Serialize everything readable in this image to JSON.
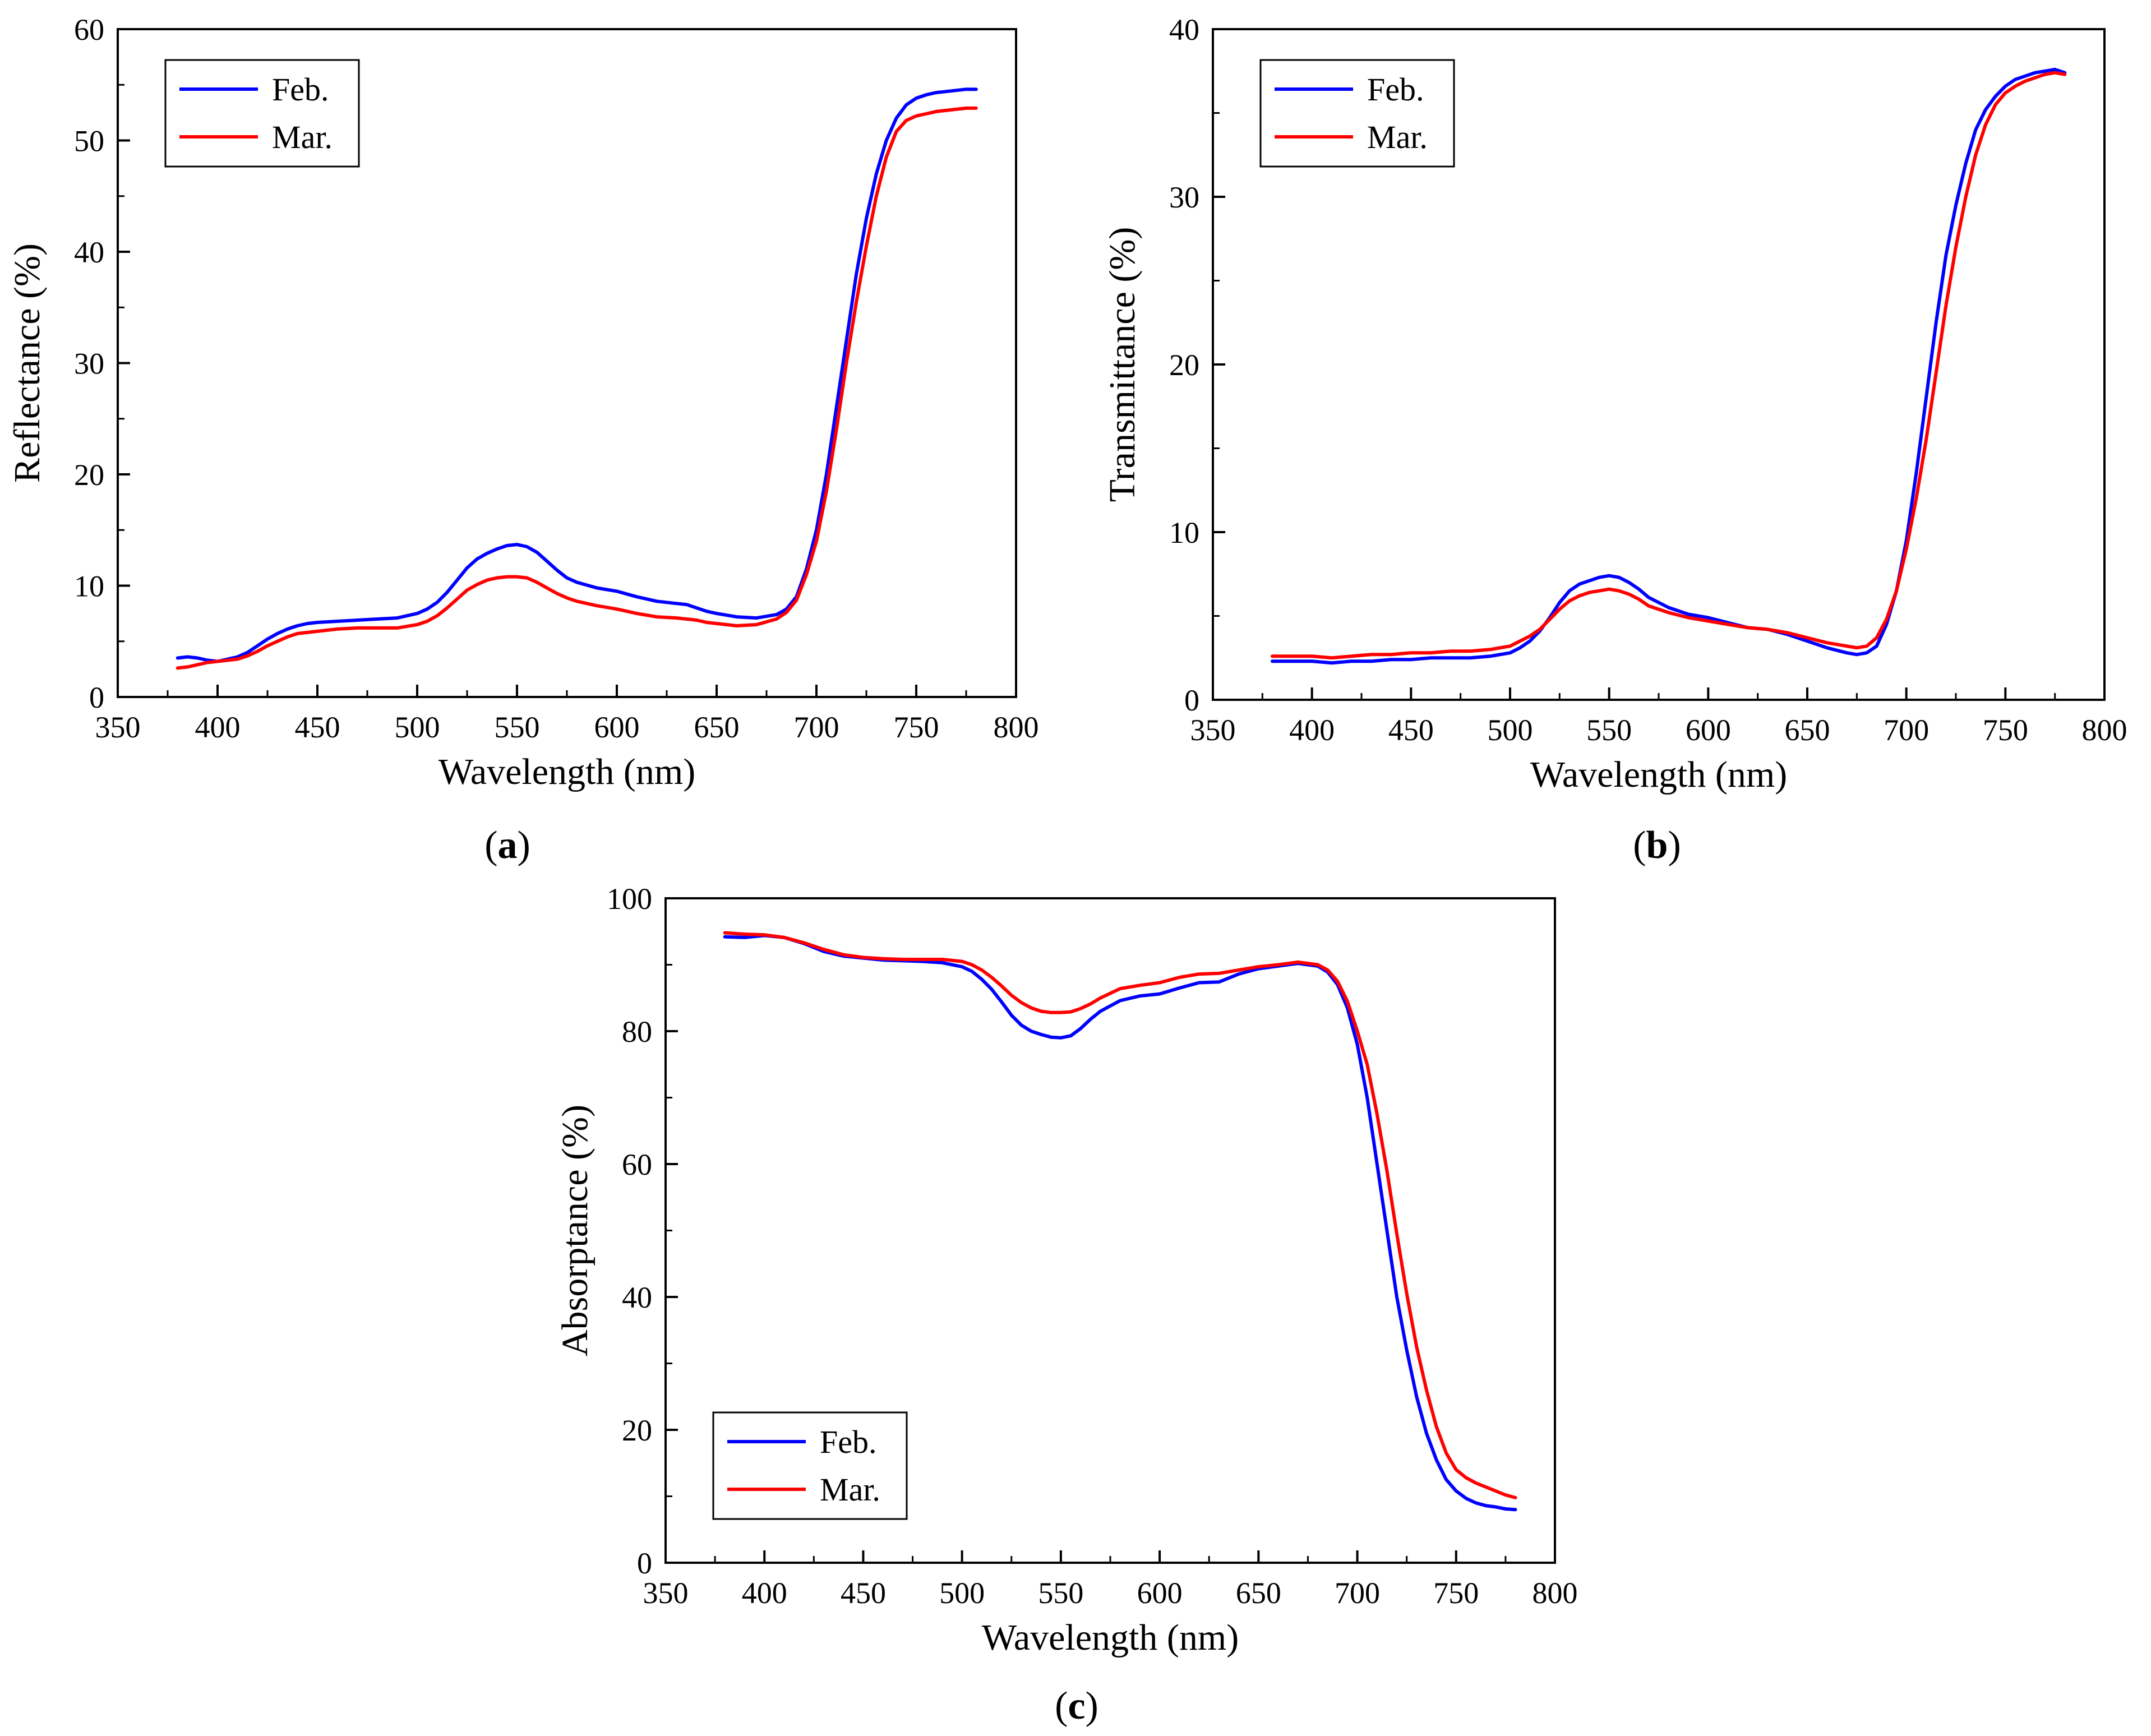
{
  "chart_data": [
    {
      "id": "a",
      "type": "line",
      "panel_label": "a",
      "xlabel": "Wavelength (nm)",
      "ylabel": "Reflectance (%)",
      "xlim": [
        350,
        800
      ],
      "ylim": [
        0,
        60
      ],
      "xticks": [
        350,
        400,
        450,
        500,
        550,
        600,
        650,
        700,
        750,
        800
      ],
      "yticks": [
        0,
        10,
        20,
        30,
        40,
        50,
        60
      ],
      "legend_position": "top-left",
      "series": [
        {
          "name": "Feb.",
          "color": "#0000ff",
          "x": [
            380,
            385,
            390,
            395,
            400,
            405,
            410,
            415,
            420,
            425,
            430,
            435,
            440,
            445,
            450,
            460,
            470,
            480,
            490,
            500,
            505,
            510,
            515,
            520,
            525,
            530,
            535,
            540,
            545,
            550,
            555,
            560,
            565,
            570,
            575,
            580,
            590,
            600,
            610,
            620,
            630,
            635,
            640,
            645,
            650,
            660,
            670,
            680,
            685,
            690,
            695,
            700,
            705,
            710,
            715,
            720,
            725,
            730,
            735,
            740,
            745,
            750,
            755,
            760,
            765,
            770,
            775,
            780
          ],
          "y": [
            3.5,
            3.6,
            3.5,
            3.3,
            3.2,
            3.4,
            3.6,
            4.0,
            4.6,
            5.2,
            5.7,
            6.1,
            6.4,
            6.6,
            6.7,
            6.8,
            6.9,
            7.0,
            7.1,
            7.5,
            7.9,
            8.5,
            9.4,
            10.5,
            11.6,
            12.4,
            12.9,
            13.3,
            13.6,
            13.7,
            13.5,
            13.0,
            12.2,
            11.4,
            10.7,
            10.3,
            9.8,
            9.5,
            9.0,
            8.6,
            8.4,
            8.3,
            8.0,
            7.7,
            7.5,
            7.2,
            7.1,
            7.4,
            7.9,
            9.0,
            11.5,
            15.0,
            20.0,
            26.0,
            32.0,
            38.0,
            43.0,
            47.0,
            50.0,
            52.0,
            53.2,
            53.8,
            54.1,
            54.3,
            54.4,
            54.5,
            54.6,
            54.6
          ]
        },
        {
          "name": "Mar.",
          "color": "#ff0000",
          "x": [
            380,
            385,
            390,
            395,
            400,
            405,
            410,
            415,
            420,
            425,
            430,
            435,
            440,
            445,
            450,
            460,
            470,
            480,
            490,
            500,
            505,
            510,
            515,
            520,
            525,
            530,
            535,
            540,
            545,
            550,
            555,
            560,
            565,
            570,
            575,
            580,
            590,
            600,
            610,
            620,
            630,
            635,
            640,
            645,
            650,
            660,
            670,
            680,
            685,
            690,
            695,
            700,
            705,
            710,
            715,
            720,
            725,
            730,
            735,
            740,
            745,
            750,
            755,
            760,
            765,
            770,
            775,
            780
          ],
          "y": [
            2.6,
            2.7,
            2.9,
            3.1,
            3.2,
            3.3,
            3.4,
            3.7,
            4.1,
            4.6,
            5.0,
            5.4,
            5.7,
            5.8,
            5.9,
            6.1,
            6.2,
            6.2,
            6.2,
            6.5,
            6.8,
            7.3,
            8.0,
            8.8,
            9.6,
            10.1,
            10.5,
            10.7,
            10.8,
            10.8,
            10.7,
            10.3,
            9.8,
            9.3,
            8.9,
            8.6,
            8.2,
            7.9,
            7.5,
            7.2,
            7.1,
            7.0,
            6.9,
            6.7,
            6.6,
            6.4,
            6.5,
            7.0,
            7.6,
            8.7,
            11.0,
            14.0,
            18.5,
            24.0,
            30.0,
            35.5,
            40.5,
            45.0,
            48.5,
            50.8,
            51.8,
            52.2,
            52.4,
            52.6,
            52.7,
            52.8,
            52.9,
            52.9
          ]
        }
      ]
    },
    {
      "id": "b",
      "type": "line",
      "panel_label": "b",
      "xlabel": "Wavelength (nm)",
      "ylabel": "Transmittance (%)",
      "xlim": [
        350,
        800
      ],
      "ylim": [
        0,
        40
      ],
      "xticks": [
        350,
        400,
        450,
        500,
        550,
        600,
        650,
        700,
        750,
        800
      ],
      "yticks": [
        0,
        10,
        20,
        30,
        40
      ],
      "legend_position": "top-left",
      "series": [
        {
          "name": "Feb.",
          "color": "#0000ff",
          "x": [
            380,
            390,
            400,
            410,
            420,
            430,
            440,
            450,
            460,
            470,
            480,
            490,
            500,
            505,
            510,
            515,
            520,
            525,
            530,
            535,
            540,
            545,
            550,
            555,
            560,
            565,
            570,
            580,
            590,
            600,
            610,
            620,
            630,
            640,
            650,
            660,
            670,
            675,
            680,
            685,
            690,
            695,
            700,
            705,
            710,
            715,
            720,
            725,
            730,
            735,
            740,
            745,
            750,
            755,
            760,
            765,
            770,
            775,
            780
          ],
          "y": [
            2.3,
            2.3,
            2.3,
            2.2,
            2.3,
            2.3,
            2.4,
            2.4,
            2.5,
            2.5,
            2.5,
            2.6,
            2.8,
            3.1,
            3.5,
            4.1,
            4.9,
            5.8,
            6.5,
            6.9,
            7.1,
            7.3,
            7.4,
            7.3,
            7.0,
            6.6,
            6.1,
            5.5,
            5.1,
            4.9,
            4.6,
            4.3,
            4.2,
            3.9,
            3.5,
            3.1,
            2.8,
            2.7,
            2.8,
            3.2,
            4.5,
            6.5,
            9.5,
            13.5,
            18.0,
            22.5,
            26.5,
            29.5,
            32.0,
            34.0,
            35.2,
            36.0,
            36.6,
            37.0,
            37.2,
            37.4,
            37.5,
            37.6,
            37.4
          ]
        },
        {
          "name": "Mar.",
          "color": "#ff0000",
          "x": [
            380,
            390,
            400,
            410,
            420,
            430,
            440,
            450,
            460,
            470,
            480,
            490,
            500,
            505,
            510,
            515,
            520,
            525,
            530,
            535,
            540,
            545,
            550,
            555,
            560,
            565,
            570,
            580,
            590,
            600,
            610,
            620,
            630,
            640,
            650,
            660,
            670,
            675,
            680,
            685,
            690,
            695,
            700,
            705,
            710,
            715,
            720,
            725,
            730,
            735,
            740,
            745,
            750,
            755,
            760,
            765,
            770,
            775,
            780
          ],
          "y": [
            2.6,
            2.6,
            2.6,
            2.5,
            2.6,
            2.7,
            2.7,
            2.8,
            2.8,
            2.9,
            2.9,
            3.0,
            3.2,
            3.5,
            3.8,
            4.2,
            4.8,
            5.4,
            5.9,
            6.2,
            6.4,
            6.5,
            6.6,
            6.5,
            6.3,
            6.0,
            5.6,
            5.2,
            4.9,
            4.7,
            4.5,
            4.3,
            4.2,
            4.0,
            3.7,
            3.4,
            3.2,
            3.1,
            3.2,
            3.7,
            4.8,
            6.5,
            9.0,
            12.0,
            15.5,
            19.5,
            23.5,
            27.0,
            30.0,
            32.5,
            34.3,
            35.5,
            36.2,
            36.6,
            36.9,
            37.1,
            37.3,
            37.4,
            37.3
          ]
        }
      ]
    },
    {
      "id": "c",
      "type": "line",
      "panel_label": "c",
      "xlabel": "Wavelength (nm)",
      "ylabel": "Absorptance (%)",
      "xlim": [
        350,
        800
      ],
      "ylim": [
        0,
        100
      ],
      "xticks": [
        350,
        400,
        450,
        500,
        550,
        600,
        650,
        700,
        750,
        800
      ],
      "yticks": [
        0,
        20,
        40,
        60,
        80,
        100
      ],
      "legend_position": "bottom-left",
      "series": [
        {
          "name": "Feb.",
          "color": "#0000ff",
          "x": [
            380,
            390,
            400,
            410,
            420,
            430,
            440,
            450,
            460,
            470,
            480,
            490,
            500,
            505,
            510,
            515,
            520,
            525,
            530,
            535,
            540,
            545,
            550,
            555,
            560,
            565,
            570,
            580,
            590,
            600,
            610,
            620,
            630,
            640,
            650,
            660,
            670,
            680,
            685,
            690,
            695,
            700,
            705,
            710,
            715,
            720,
            725,
            730,
            735,
            740,
            745,
            750,
            755,
            760,
            765,
            770,
            775,
            780
          ],
          "y": [
            94.2,
            94.1,
            94.4,
            94.1,
            93.2,
            92.0,
            91.3,
            91.0,
            90.7,
            90.6,
            90.5,
            90.3,
            89.7,
            89.0,
            87.8,
            86.3,
            84.4,
            82.4,
            80.9,
            80.0,
            79.5,
            79.1,
            79.0,
            79.3,
            80.4,
            81.8,
            83.0,
            84.6,
            85.3,
            85.6,
            86.5,
            87.3,
            87.4,
            88.6,
            89.4,
            89.8,
            90.2,
            89.8,
            88.9,
            87.0,
            83.5,
            78.0,
            70.0,
            60.0,
            50.0,
            40.0,
            32.0,
            25.0,
            19.5,
            15.5,
            12.5,
            10.8,
            9.7,
            9.0,
            8.6,
            8.4,
            8.1,
            8.0
          ]
        },
        {
          "name": "Mar.",
          "color": "#ff0000",
          "x": [
            380,
            390,
            400,
            410,
            420,
            430,
            440,
            450,
            460,
            470,
            480,
            490,
            500,
            505,
            510,
            515,
            520,
            525,
            530,
            535,
            540,
            545,
            550,
            555,
            560,
            565,
            570,
            580,
            590,
            600,
            610,
            620,
            630,
            640,
            650,
            660,
            670,
            680,
            685,
            690,
            695,
            700,
            705,
            710,
            715,
            720,
            725,
            730,
            735,
            740,
            745,
            750,
            755,
            760,
            765,
            770,
            775,
            780
          ],
          "y": [
            94.8,
            94.6,
            94.5,
            94.1,
            93.3,
            92.3,
            91.5,
            91.1,
            90.9,
            90.8,
            90.8,
            90.8,
            90.5,
            90.0,
            89.2,
            88.1,
            86.8,
            85.4,
            84.3,
            83.5,
            83.0,
            82.8,
            82.8,
            82.9,
            83.4,
            84.1,
            85.0,
            86.4,
            86.9,
            87.3,
            88.1,
            88.6,
            88.7,
            89.2,
            89.7,
            90.0,
            90.4,
            90.0,
            89.2,
            87.5,
            84.5,
            80.0,
            75.0,
            67.5,
            59.0,
            49.5,
            40.5,
            32.5,
            26.0,
            20.5,
            16.5,
            14.0,
            12.8,
            12.0,
            11.4,
            10.8,
            10.2,
            9.8
          ]
        }
      ]
    }
  ]
}
